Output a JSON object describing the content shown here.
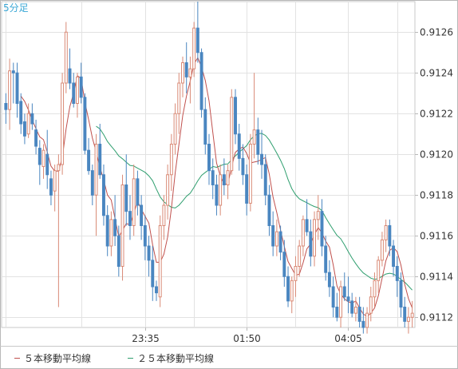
{
  "chart_data": {
    "type": "candlestick",
    "timeframe_label": "5分足",
    "x_tick_labels": [
      "23:35",
      "01:50",
      "04:05"
    ],
    "x_tick_index": [
      37,
      64,
      91
    ],
    "ylim": [
      0.91115,
      0.91275
    ],
    "y_ticks": [
      "0.9112",
      "0.9114",
      "0.9116",
      "0.9118",
      "0.9120",
      "0.9122",
      "0.9124",
      "0.9126"
    ],
    "grid": true,
    "up_color": "#d98a76",
    "down_color": "#4a86c0",
    "legend": [
      {
        "label": "５本移動平均線",
        "color": "#c0504d"
      },
      {
        "label": "２５本移動平均線",
        "color": "#2e9e6e"
      }
    ],
    "candles": [
      [
        0.91225,
        0.9123,
        0.91215,
        0.91222
      ],
      [
        0.91222,
        0.91247,
        0.91212,
        0.91241
      ],
      [
        0.91241,
        0.91245,
        0.91225,
        0.9124
      ],
      [
        0.9124,
        0.91245,
        0.91218,
        0.91225
      ],
      [
        0.91226,
        0.9123,
        0.9121,
        0.91215
      ],
      [
        0.91216,
        0.9122,
        0.91205,
        0.91209
      ],
      [
        0.9121,
        0.91225,
        0.91208,
        0.9122
      ],
      [
        0.9122,
        0.91225,
        0.91212,
        0.91215
      ],
      [
        0.91212,
        0.91217,
        0.912,
        0.91204
      ],
      [
        0.91203,
        0.91207,
        0.91185,
        0.91195
      ],
      [
        0.91194,
        0.91205,
        0.91188,
        0.91202
      ],
      [
        0.912,
        0.91212,
        0.91183,
        0.9119
      ],
      [
        0.91188,
        0.91192,
        0.91175,
        0.9118
      ],
      [
        0.91182,
        0.91195,
        0.91172,
        0.91192
      ],
      [
        0.91192,
        0.912,
        0.91125,
        0.91195
      ],
      [
        0.91195,
        0.9124,
        0.9119,
        0.91235
      ],
      [
        0.91235,
        0.91265,
        0.9123,
        0.9126
      ],
      [
        0.91242,
        0.91252,
        0.91232,
        0.91235
      ],
      [
        0.91235,
        0.9124,
        0.91223,
        0.91225
      ],
      [
        0.91225,
        0.9124,
        0.91218,
        0.91238
      ],
      [
        0.91238,
        0.91245,
        0.91225,
        0.91228
      ],
      [
        0.91228,
        0.9123,
        0.912,
        0.91202
      ],
      [
        0.91202,
        0.91208,
        0.9119,
        0.91192
      ],
      [
        0.91192,
        0.91195,
        0.91175,
        0.9118
      ],
      [
        0.9118,
        0.9121,
        0.9116,
        0.91205
      ],
      [
        0.91205,
        0.91215,
        0.91188,
        0.9119
      ],
      [
        0.9119,
        0.91195,
        0.91165,
        0.9117
      ],
      [
        0.9117,
        0.91175,
        0.9115,
        0.91155
      ],
      [
        0.91155,
        0.91172,
        0.9115,
        0.91168
      ],
      [
        0.91168,
        0.9118,
        0.91155,
        0.9116
      ],
      [
        0.9116,
        0.91165,
        0.9114,
        0.91145
      ],
      [
        0.91145,
        0.9119,
        0.91138,
        0.91185
      ],
      [
        0.91185,
        0.912,
        0.91165,
        0.91172
      ],
      [
        0.91172,
        0.9118,
        0.91158,
        0.91165
      ],
      [
        0.91165,
        0.91195,
        0.9116,
        0.91188
      ],
      [
        0.91188,
        0.91192,
        0.9117,
        0.91175
      ],
      [
        0.91175,
        0.9118,
        0.91158,
        0.91165
      ],
      [
        0.91165,
        0.9117,
        0.91148,
        0.91155
      ],
      [
        0.91155,
        0.9116,
        0.9114,
        0.91148
      ],
      [
        0.91148,
        0.91155,
        0.91128,
        0.91135
      ],
      [
        0.91135,
        0.91138,
        0.91128,
        0.91132
      ],
      [
        0.9113,
        0.9117,
        0.91125,
        0.91165
      ],
      [
        0.91165,
        0.9118,
        0.91158,
        0.91175
      ],
      [
        0.91175,
        0.91195,
        0.91168,
        0.9119
      ],
      [
        0.9119,
        0.9121,
        0.91182,
        0.91205
      ],
      [
        0.91205,
        0.91225,
        0.912,
        0.9122
      ],
      [
        0.9122,
        0.9124,
        0.9121,
        0.91235
      ],
      [
        0.91235,
        0.91248,
        0.91228,
        0.91245
      ],
      [
        0.91245,
        0.91255,
        0.9123,
        0.91238
      ],
      [
        0.91238,
        0.91248,
        0.91225,
        0.91242
      ],
      [
        0.91242,
        0.91265,
        0.91238,
        0.91262
      ],
      [
        0.91262,
        0.91275,
        0.91245,
        0.9125
      ],
      [
        0.9125,
        0.91252,
        0.91218,
        0.91222
      ],
      [
        0.91222,
        0.91228,
        0.912,
        0.91205
      ],
      [
        0.91205,
        0.9121,
        0.91185,
        0.91192
      ],
      [
        0.91192,
        0.91198,
        0.91178,
        0.91185
      ],
      [
        0.91185,
        0.9119,
        0.9117,
        0.91175
      ],
      [
        0.91175,
        0.91195,
        0.9117,
        0.9119
      ],
      [
        0.9119,
        0.91198,
        0.9118,
        0.91185
      ],
      [
        0.91185,
        0.91195,
        0.91178,
        0.91192
      ],
      [
        0.91192,
        0.91232,
        0.9119,
        0.91228
      ],
      [
        0.91228,
        0.91232,
        0.91205,
        0.9121
      ],
      [
        0.9121,
        0.91215,
        0.91192,
        0.91198
      ],
      [
        0.91198,
        0.91205,
        0.91185,
        0.9119
      ],
      [
        0.9119,
        0.91195,
        0.9117,
        0.91176
      ],
      [
        0.91176,
        0.9121,
        0.91172,
        0.91205
      ],
      [
        0.91205,
        0.9124,
        0.91198,
        0.91212
      ],
      [
        0.91212,
        0.91218,
        0.91195,
        0.912
      ],
      [
        0.912,
        0.91212,
        0.91188,
        0.91195
      ],
      [
        0.91195,
        0.912,
        0.91175,
        0.9118
      ],
      [
        0.9118,
        0.91185,
        0.9116,
        0.91165
      ],
      [
        0.91165,
        0.91172,
        0.9115,
        0.91155
      ],
      [
        0.91155,
        0.91168,
        0.9115,
        0.91162
      ],
      [
        0.91162,
        0.91165,
        0.91148,
        0.91152
      ],
      [
        0.91152,
        0.91158,
        0.91135,
        0.9114
      ],
      [
        0.9114,
        0.91145,
        0.91125,
        0.91128
      ],
      [
        0.91128,
        0.9114,
        0.91122,
        0.91138
      ],
      [
        0.91138,
        0.9115,
        0.9113,
        0.91145
      ],
      [
        0.91145,
        0.91158,
        0.9114,
        0.91155
      ],
      [
        0.91155,
        0.9117,
        0.9115,
        0.91168
      ],
      [
        0.91168,
        0.91178,
        0.9116,
        0.91162
      ],
      [
        0.91162,
        0.91168,
        0.91145,
        0.9115
      ],
      [
        0.9115,
        0.91172,
        0.91145,
        0.91168
      ],
      [
        0.91168,
        0.9118,
        0.91158,
        0.91172
      ],
      [
        0.91172,
        0.91178,
        0.9115,
        0.91155
      ],
      [
        0.91155,
        0.9116,
        0.91138,
        0.91142
      ],
      [
        0.91142,
        0.91148,
        0.9113,
        0.91135
      ],
      [
        0.91135,
        0.9114,
        0.9112,
        0.91125
      ],
      [
        0.91125,
        0.91132,
        0.91118,
        0.9112
      ],
      [
        0.9112,
        0.91138,
        0.91115,
        0.91135
      ],
      [
        0.91135,
        0.91142,
        0.91128,
        0.9113
      ],
      [
        0.9113,
        0.9114,
        0.91122,
        0.91128
      ],
      [
        0.91128,
        0.91132,
        0.9112,
        0.91122
      ],
      [
        0.91122,
        0.9113,
        0.91118,
        0.91125
      ],
      [
        0.91125,
        0.9113,
        0.91115,
        0.91118
      ],
      [
        0.91118,
        0.91125,
        0.91112,
        0.91115
      ],
      [
        0.91115,
        0.91125,
        0.91112,
        0.91122
      ],
      [
        0.91122,
        0.91135,
        0.91118,
        0.9113
      ],
      [
        0.9113,
        0.91142,
        0.91125,
        0.91138
      ],
      [
        0.91138,
        0.9115,
        0.91132,
        0.91148
      ],
      [
        0.91148,
        0.91162,
        0.91145,
        0.91158
      ],
      [
        0.91158,
        0.91168,
        0.91152,
        0.91165
      ],
      [
        0.91165,
        0.91168,
        0.9115,
        0.91155
      ],
      [
        0.91155,
        0.91158,
        0.9114,
        0.91145
      ],
      [
        0.91145,
        0.9115,
        0.9113,
        0.91138
      ],
      [
        0.91138,
        0.91142,
        0.9112,
        0.91125
      ],
      [
        0.91125,
        0.9113,
        0.91115,
        0.91118
      ],
      [
        0.91118,
        0.91125,
        0.91112,
        0.9112
      ],
      [
        0.9112,
        0.91128,
        0.91115,
        0.91122
      ]
    ]
  }
}
